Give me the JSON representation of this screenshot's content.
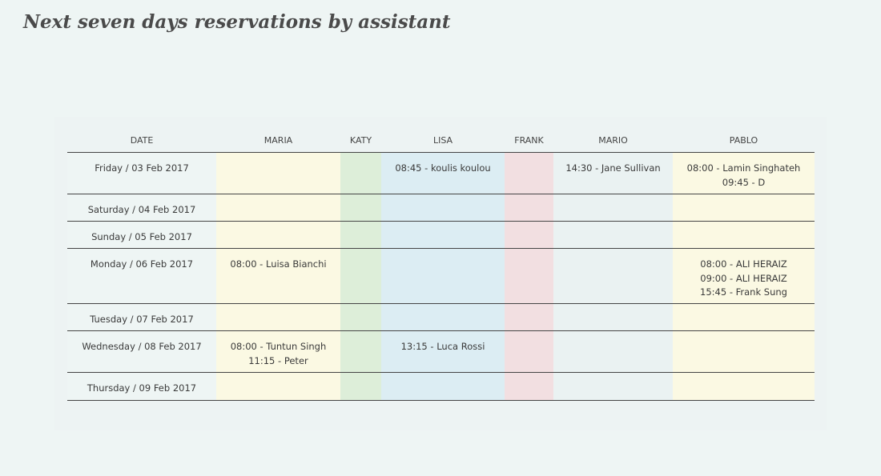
{
  "page": {
    "title": "Next seven days reservations by assistant"
  },
  "schedule": {
    "columns": [
      "DATE",
      "MARIA",
      "KATY",
      "LISA",
      "FRANK",
      "MARIO",
      "PABLO"
    ],
    "column_colors": [
      "#eef5f4",
      "#fbf9e3",
      "#ddeed9",
      "#dcedf3",
      "#f2dfe1",
      "#eaf2f2",
      "#fbf9e3"
    ],
    "rows": [
      {
        "date": "Friday / 03 Feb 2017",
        "cells": [
          [],
          [],
          [
            "08:45 - koulis koulou"
          ],
          [],
          [
            "14:30 - Jane Sullivan"
          ],
          [
            "08:00 - Lamin Singhateh",
            "09:45 - D"
          ]
        ]
      },
      {
        "date": "Saturday / 04 Feb 2017",
        "cells": [
          [],
          [],
          [],
          [],
          [],
          []
        ]
      },
      {
        "date": "Sunday / 05 Feb 2017",
        "cells": [
          [],
          [],
          [],
          [],
          [],
          []
        ]
      },
      {
        "date": "Monday / 06 Feb 2017",
        "cells": [
          [
            "08:00 - Luisa Bianchi"
          ],
          [],
          [],
          [],
          [],
          [
            "08:00 - ALI HERAIZ",
            "09:00 - ALI HERAIZ",
            "15:45 - Frank Sung"
          ]
        ]
      },
      {
        "date": "Tuesday / 07 Feb 2017",
        "cells": [
          [],
          [],
          [],
          [],
          [],
          []
        ]
      },
      {
        "date": "Wednesday / 08 Feb 2017",
        "cells": [
          [
            "08:00 - Tuntun Singh",
            "11:15 - Peter"
          ],
          [],
          [
            "13:15 - Luca Rossi"
          ],
          [],
          [],
          []
        ]
      },
      {
        "date": "Thursday / 09 Feb 2017",
        "cells": [
          [],
          [],
          [],
          [],
          [],
          []
        ]
      }
    ]
  }
}
